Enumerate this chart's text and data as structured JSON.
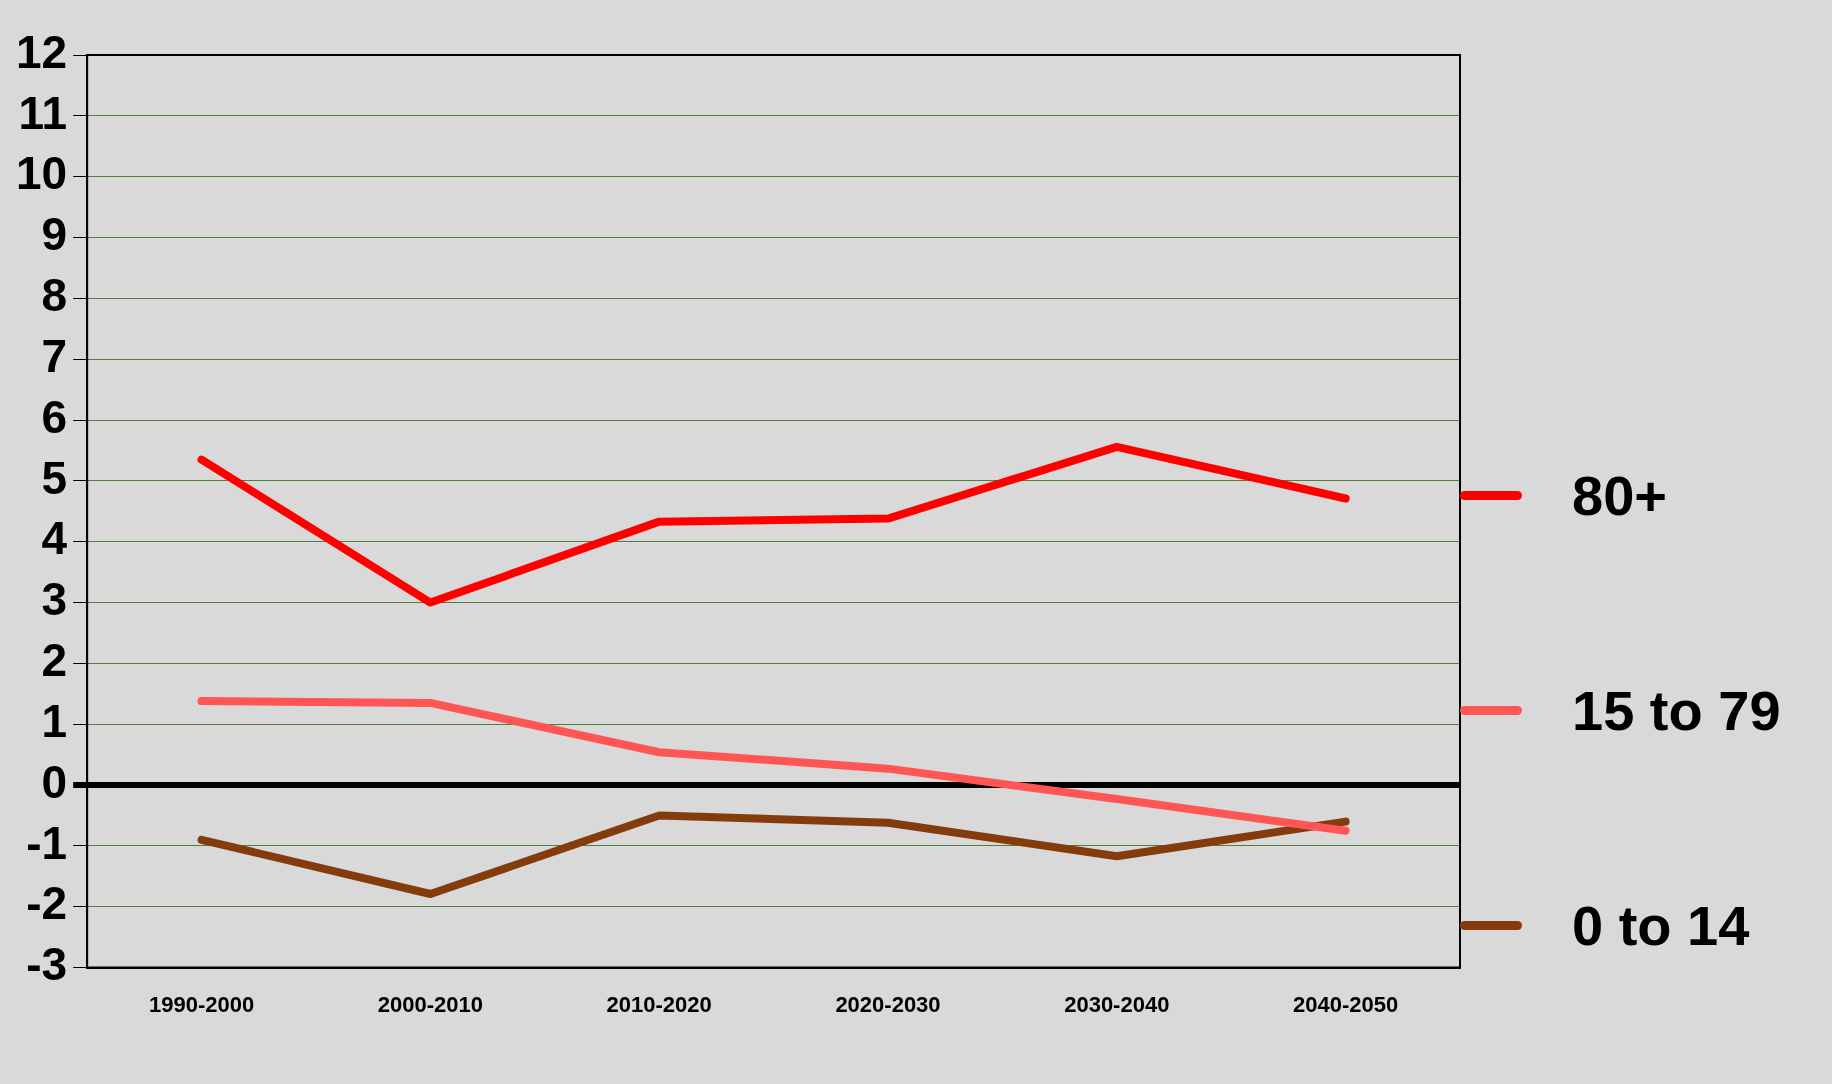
{
  "chart_data": {
    "type": "line",
    "categories": [
      "1990-2000",
      "2000-2010",
      "2010-2020",
      "2020-2030",
      "2030-2040",
      "2040-2050"
    ],
    "series": [
      {
        "name": "80+",
        "color": "#ff0000",
        "values": [
          5.35,
          3.0,
          4.33,
          4.38,
          5.56,
          4.71
        ]
      },
      {
        "name": "15 to 79",
        "color": "#ff5555",
        "values": [
          1.38,
          1.35,
          0.54,
          0.27,
          -0.23,
          -0.75
        ]
      },
      {
        "name": "0 to 14",
        "color": "#843c0c",
        "values": [
          -0.9,
          -1.79,
          -0.5,
          -0.62,
          -1.17,
          -0.6
        ]
      }
    ],
    "ylim": [
      -3,
      12
    ],
    "yticks": [
      -3,
      -2,
      -1,
      0,
      1,
      2,
      3,
      4,
      5,
      6,
      7,
      8,
      9,
      10,
      11,
      12
    ],
    "grid": "y",
    "legend": "right",
    "marker": "none",
    "line_style": "solid"
  }
}
